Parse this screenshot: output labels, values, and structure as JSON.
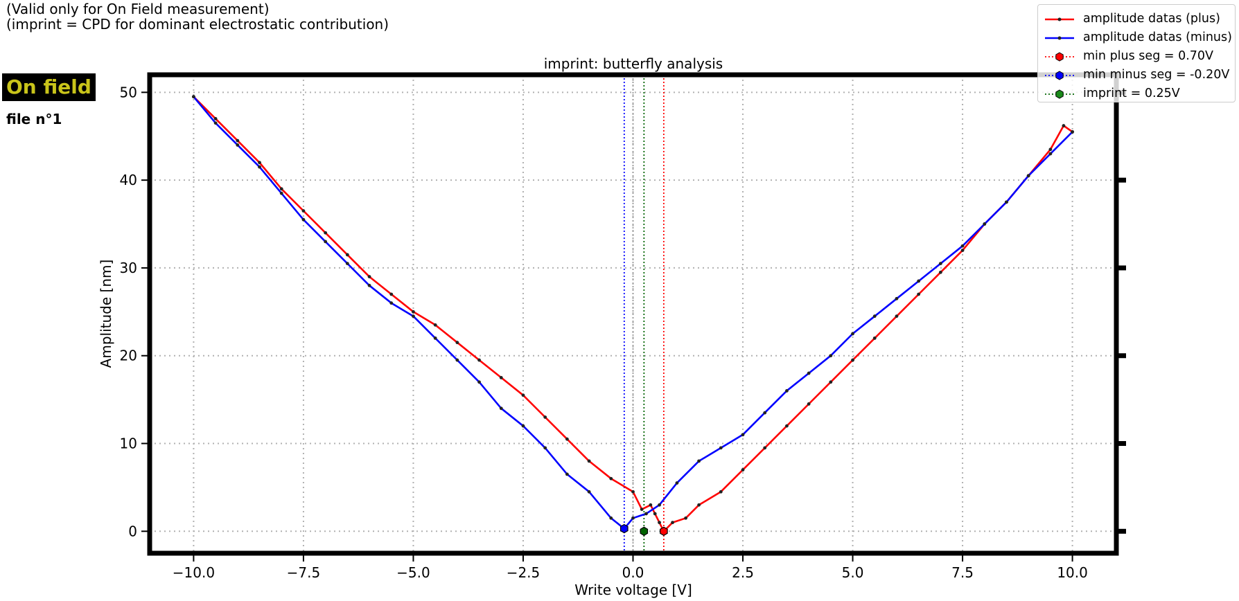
{
  "header": {
    "note_line1": "(Valid only for On Field measurement)",
    "note_line2": "(imprint = CPD for dominant electrostatic contribution)",
    "badge": "On field",
    "file_label": "file n°1"
  },
  "colors": {
    "plus": "#ff0000",
    "minus": "#0000ff",
    "imprint": "#006400",
    "grid": "#b0b0b0",
    "badge_text": "#c9c41a"
  },
  "legend": [
    {
      "label": "amplitude datas (plus)",
      "color": "#ff0000",
      "style": "line-marker"
    },
    {
      "label": "amplitude datas (minus)",
      "color": "#0000ff",
      "style": "line-marker"
    },
    {
      "label": "min plus seg = 0.70V",
      "color": "#ff0000",
      "style": "dotted-hex"
    },
    {
      "label": "min minus seg = -0.20V",
      "color": "#0000ff",
      "style": "dotted-hex"
    },
    {
      "label": "imprint = 0.25V",
      "color": "#006400",
      "style": "dotted-hex"
    }
  ],
  "chart_data": {
    "type": "line",
    "title": "imprint: butterfly analysis",
    "xlabel": "Write voltage [V]",
    "ylabel": "Amplitude [nm]",
    "xlim": [
      -11,
      11
    ],
    "ylim": [
      -2.5,
      52
    ],
    "xticks": [
      -10,
      -7.5,
      -5,
      -2.5,
      0,
      2.5,
      5,
      7.5,
      10
    ],
    "xtick_labels": [
      "−10.0",
      "−7.5",
      "−5.0",
      "−2.5",
      "0.0",
      "2.5",
      "5.0",
      "7.5",
      "10.0"
    ],
    "yticks": [
      0,
      10,
      20,
      30,
      40,
      50
    ],
    "ytick_labels": [
      "0",
      "10",
      "20",
      "30",
      "40",
      "50"
    ],
    "grid": true,
    "legend_position": "top-right",
    "series": [
      {
        "name": "amplitude datas (plus)",
        "color": "#ff0000",
        "x": [
          -10,
          -9.5,
          -9,
          -8.5,
          -8,
          -7.5,
          -7,
          -6.5,
          -6,
          -5.5,
          -5,
          -4.5,
          -4,
          -3.5,
          -3,
          -2.5,
          -2,
          -1.5,
          -1,
          -0.5,
          0,
          0.2,
          0.4,
          0.5,
          0.6,
          0.7,
          0.9,
          1.2,
          1.5,
          2,
          2.5,
          3,
          3.5,
          4,
          4.5,
          5,
          5.5,
          6,
          6.5,
          7,
          7.5,
          8,
          8.5,
          9,
          9.5,
          9.8,
          10
        ],
        "y": [
          49.5,
          47.0,
          44.5,
          42.0,
          39.0,
          36.5,
          34.0,
          31.5,
          29.0,
          27.0,
          25.0,
          23.5,
          21.5,
          19.5,
          17.5,
          15.5,
          13.0,
          10.5,
          8.0,
          6.0,
          4.5,
          2.5,
          3.0,
          2.0,
          1.0,
          0.0,
          1.0,
          1.5,
          3.0,
          4.5,
          7.0,
          9.5,
          12.0,
          14.5,
          17.0,
          19.5,
          22.0,
          24.5,
          27.0,
          29.5,
          32.0,
          35.0,
          37.5,
          40.5,
          43.5,
          46.2,
          45.5
        ]
      },
      {
        "name": "amplitude datas (minus)",
        "color": "#0000ff",
        "x": [
          -10,
          -9.5,
          -9,
          -8.5,
          -8,
          -7.5,
          -7,
          -6.5,
          -6,
          -5.5,
          -5,
          -4.5,
          -4,
          -3.5,
          -3,
          -2.5,
          -2,
          -1.5,
          -1,
          -0.5,
          -0.2,
          0,
          0.3,
          0.6,
          1,
          1.5,
          2,
          2.5,
          3,
          3.5,
          4,
          4.5,
          5,
          5.5,
          6,
          6.5,
          7,
          7.5,
          8,
          8.5,
          9,
          9.5,
          10
        ],
        "y": [
          49.5,
          46.5,
          44.0,
          41.5,
          38.5,
          35.5,
          33.0,
          30.5,
          28.0,
          26.0,
          24.5,
          22.0,
          19.5,
          17.0,
          14.0,
          12.0,
          9.5,
          6.5,
          4.5,
          1.5,
          0.3,
          1.5,
          2.0,
          3.0,
          5.5,
          8.0,
          9.5,
          11.0,
          13.5,
          16.0,
          18.0,
          20.0,
          22.5,
          24.5,
          26.5,
          28.5,
          30.5,
          32.5,
          35.0,
          37.5,
          40.5,
          43.0,
          45.5
        ]
      }
    ],
    "vlines": [
      {
        "x": 0.7,
        "color": "#ff0000"
      },
      {
        "x": -0.2,
        "color": "#0000ff"
      },
      {
        "x": 0.25,
        "color": "#006400"
      },
      {
        "x": 0.0,
        "color": "#999999"
      }
    ],
    "markers": [
      {
        "x": 0.7,
        "y": 0.0,
        "color": "#ff0000"
      },
      {
        "x": -0.2,
        "y": 0.3,
        "color": "#0000ff"
      },
      {
        "x": 0.25,
        "y": 0.0,
        "color": "#006400"
      }
    ]
  }
}
